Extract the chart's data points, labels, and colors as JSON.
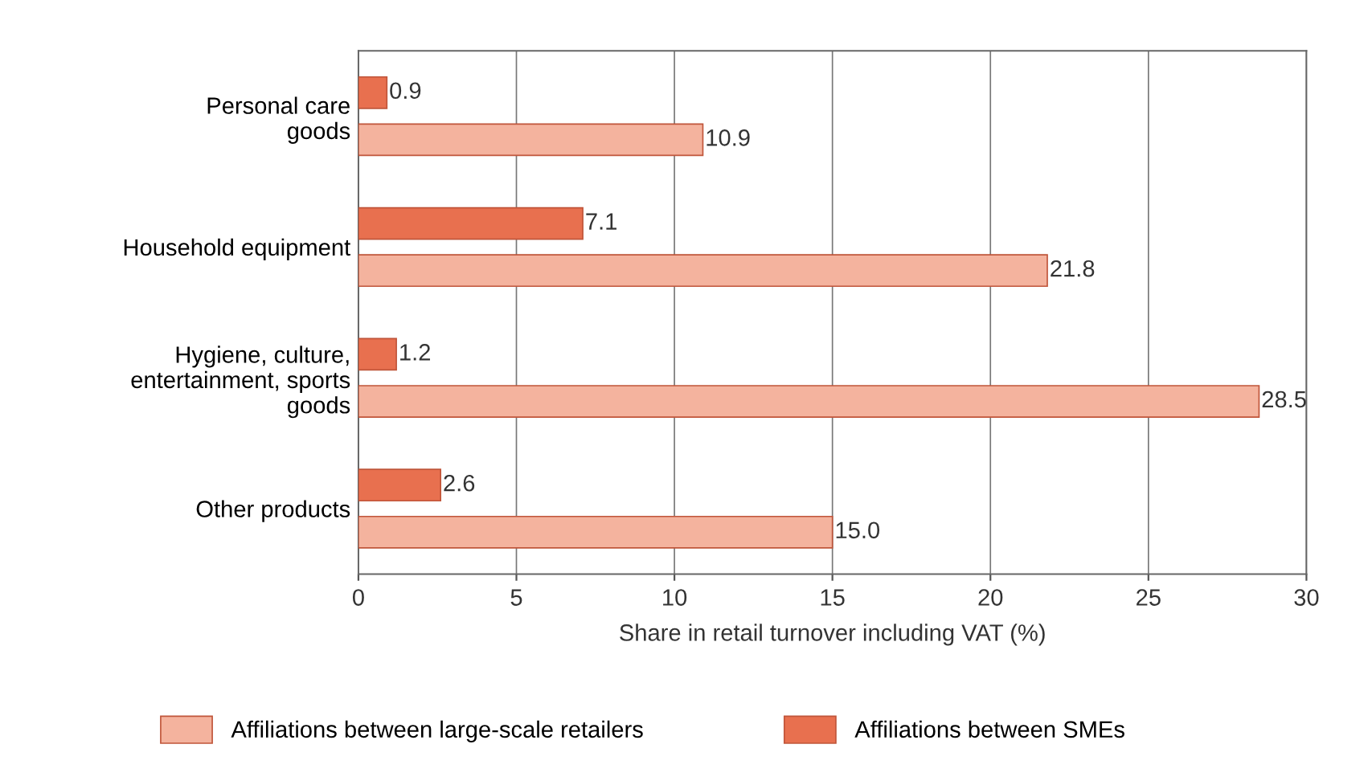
{
  "chart_data": {
    "type": "bar",
    "orientation": "horizontal",
    "xlabel": "Share in retail turnover including VAT (%)",
    "categories": [
      "Personal care\ngoods",
      "Household equipment",
      "Hygiene, culture,\nentertainment, sports\ngoods",
      "Other products"
    ],
    "series": [
      {
        "name": "Affiliations between large-scale retailers",
        "color": "#f4b39e",
        "values": [
          10.9,
          21.8,
          28.5,
          15.0
        ],
        "value_labels": [
          "10.9",
          "21.8",
          "28.5",
          "15.0"
        ]
      },
      {
        "name": "Affiliations between SMEs",
        "color": "#e8704f",
        "values": [
          0.9,
          7.1,
          1.2,
          2.6
        ],
        "value_labels": [
          "0.9",
          "7.1",
          "1.2",
          "2.6"
        ]
      }
    ],
    "xlim": [
      0,
      30
    ],
    "xticks": [
      0,
      5,
      10,
      15,
      20,
      25,
      30
    ],
    "grid": "x",
    "legend": "bottom"
  }
}
